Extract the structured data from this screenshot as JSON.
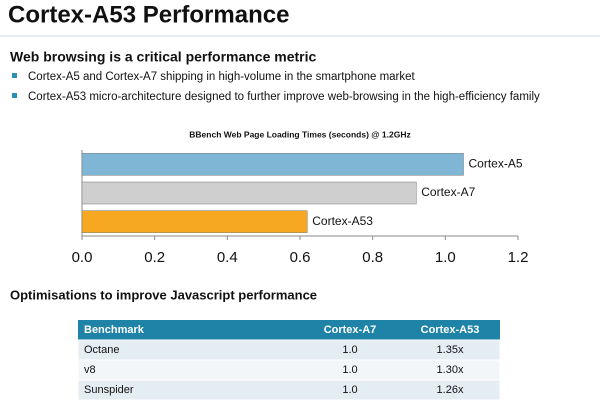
{
  "header": {
    "title": "Cortex-A53 Performance"
  },
  "section1": {
    "heading": "Web browsing is a critical performance metric",
    "bullets": [
      "Cortex-A5 and Cortex-A7 shipping in high-volume in the smartphone market",
      "Cortex-A53 micro-architecture designed to further improve web-browsing in the high-efficiency family"
    ]
  },
  "chart_data": {
    "type": "barh",
    "title": "BBench Web Page Loading Times (seconds) @ 1.2GHz",
    "categories": [
      "Cortex-A5",
      "Cortex-A7",
      "Cortex-A53"
    ],
    "values": [
      1.05,
      0.92,
      0.62
    ],
    "colors": [
      "#7fb6d6",
      "#cfcfcf",
      "#f7a823"
    ],
    "xlim": [
      0,
      1.2
    ],
    "xticks": [
      {
        "value": 0,
        "label": "0.0"
      },
      {
        "value": 0.2,
        "label": "0.2"
      },
      {
        "value": 0.4,
        "label": "0.4"
      },
      {
        "value": 0.6,
        "label": "0.6"
      },
      {
        "value": 0.8,
        "label": "0.8"
      },
      {
        "value": 1,
        "label": "1.0"
      },
      {
        "value": 1.2,
        "label": "1.2"
      }
    ],
    "grid": false
  },
  "section2": {
    "heading": "Optimisations to improve Javascript performance"
  },
  "table": {
    "header": [
      "Benchmark",
      "Cortex-A7",
      "Cortex-A53"
    ],
    "rows": [
      [
        "Octane",
        "1.0",
        "1.35x"
      ],
      [
        "v8",
        "1.0",
        "1.30x"
      ],
      [
        "Sunspider",
        "1.0",
        "1.26x"
      ]
    ]
  }
}
